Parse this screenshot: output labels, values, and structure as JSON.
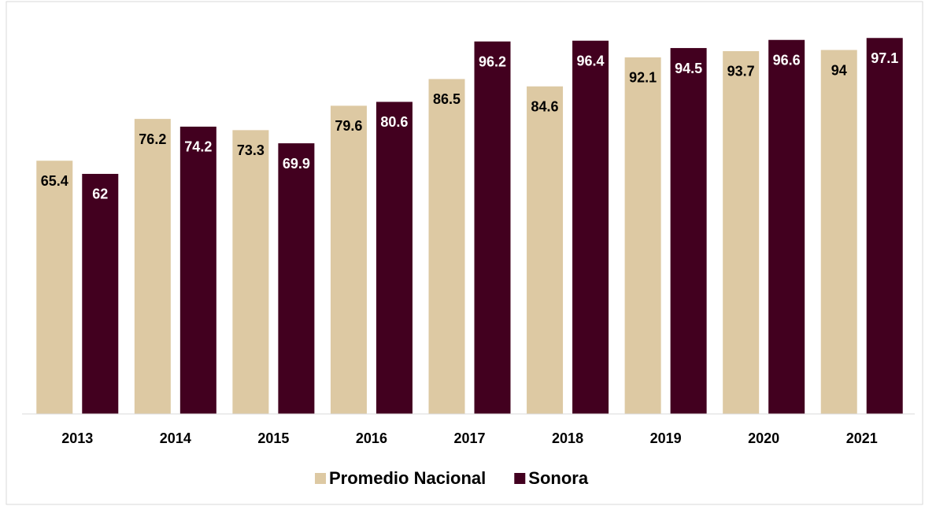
{
  "chart_data": {
    "type": "bar",
    "categories": [
      "2013",
      "2014",
      "2015",
      "2016",
      "2017",
      "2018",
      "2019",
      "2020",
      "2021"
    ],
    "series": [
      {
        "name": "Promedio Nacional",
        "color": "#ddc9a3",
        "values": [
          65.4,
          76.2,
          73.3,
          79.6,
          86.5,
          84.6,
          92.1,
          93.7,
          94
        ]
      },
      {
        "name": "Sonora",
        "color": "#42001f",
        "values": [
          62,
          74.2,
          69.9,
          80.6,
          96.2,
          96.4,
          94.5,
          96.6,
          97.1
        ]
      }
    ],
    "ylim": [
      0,
      100
    ],
    "legend": "bottom"
  }
}
